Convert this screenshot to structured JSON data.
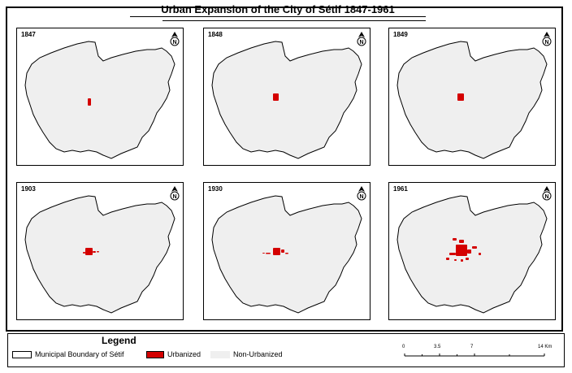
{
  "title": "Urban Expansion of the City of Sétif 1847-1961",
  "colors": {
    "urbanized": "#d40000",
    "non_urbanized": "#efefef",
    "boundary": "#000000"
  },
  "panels": [
    {
      "year": "1847",
      "urban_extent": "smallest core"
    },
    {
      "year": "1848",
      "urban_extent": "small core"
    },
    {
      "year": "1849",
      "urban_extent": "small core"
    },
    {
      "year": "1903",
      "urban_extent": "core with small extensions"
    },
    {
      "year": "1930",
      "urban_extent": "core with scattered patches"
    },
    {
      "year": "1961",
      "urban_extent": "largest, multiple scattered patches"
    }
  ],
  "north_arrow": {
    "icon": "north-arrow-icon",
    "label": "N"
  },
  "legend": {
    "title": "Legend",
    "items": [
      {
        "label": "Municipal Boundary of Sétif",
        "swatch": "white-outlined"
      },
      {
        "label": "Urbanized",
        "swatch": "red"
      },
      {
        "label": "Non-Urbanized",
        "swatch": "light-gray"
      }
    ]
  },
  "scale_bar": {
    "ticks": [
      "0",
      "3.5",
      "7",
      "14 Km"
    ]
  }
}
